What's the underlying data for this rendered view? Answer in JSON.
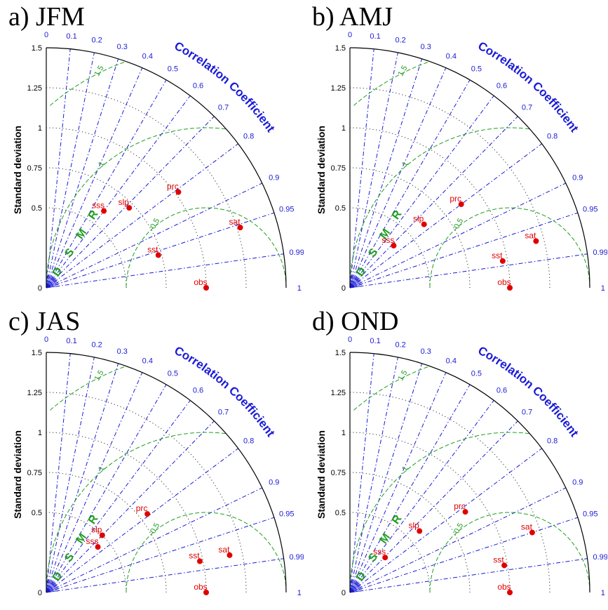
{
  "colors": {
    "axis": "#000000",
    "correlation": "#1a1ad6",
    "rmsd": "#1f9e1f",
    "stddev_grid": "#333333",
    "points": "#e00000"
  },
  "chart_data": [
    {
      "type": "taylor",
      "panel_label": "a) JFM",
      "ylabel": "Standard deviation",
      "corr_label": "Correlation Coefficient",
      "rmsd_label": "R M S D",
      "std_ticks": [
        "0",
        "0.5",
        "0.75",
        "1",
        "1.25",
        "1.5"
      ],
      "std_ticks_num": [
        0,
        0.5,
        0.75,
        1,
        1.25,
        1.5
      ],
      "corr_ticks": [
        "0",
        "0.1",
        "0.2",
        "0.3",
        "0.4",
        "0.5",
        "0.6",
        "0.7",
        "0.8",
        "0.9",
        "0.95",
        "0.99",
        "1"
      ],
      "corr_ticks_num": [
        0,
        0.1,
        0.2,
        0.3,
        0.4,
        0.5,
        0.6,
        0.7,
        0.8,
        0.9,
        0.95,
        0.99,
        1
      ],
      "rmsd_ticks": [
        "0.5",
        "1",
        "1.5"
      ],
      "rmsd_ticks_num": [
        0.5,
        1,
        1.5
      ],
      "std_max": 1.5,
      "ref_std": 1,
      "points": [
        {
          "label": "obs",
          "corr": 1.0,
          "std": 1.0
        },
        {
          "label": "sst",
          "corr": 0.96,
          "std": 0.73
        },
        {
          "label": "sat",
          "corr": 0.955,
          "std": 1.27
        },
        {
          "label": "prc",
          "corr": 0.81,
          "std": 1.02
        },
        {
          "label": "slp",
          "corr": 0.72,
          "std": 0.72
        },
        {
          "label": "sss",
          "corr": 0.6,
          "std": 0.6
        }
      ]
    },
    {
      "type": "taylor",
      "panel_label": "b) AMJ",
      "ylabel": "Standard deviation",
      "corr_label": "Correlation Coefficient",
      "rmsd_label": "R M S D",
      "std_ticks": [
        "0",
        "0.5",
        "0.75",
        "1",
        "1.25",
        "1.5"
      ],
      "std_ticks_num": [
        0,
        0.5,
        0.75,
        1,
        1.25,
        1.5
      ],
      "corr_ticks": [
        "0",
        "0.1",
        "0.2",
        "0.3",
        "0.4",
        "0.5",
        "0.6",
        "0.7",
        "0.8",
        "0.9",
        "0.95",
        "0.99",
        "1"
      ],
      "corr_ticks_num": [
        0,
        0.1,
        0.2,
        0.3,
        0.4,
        0.5,
        0.6,
        0.7,
        0.8,
        0.9,
        0.95,
        0.99,
        1
      ],
      "rmsd_ticks": [
        "0.5",
        "1",
        "1.5"
      ],
      "rmsd_ticks_num": [
        0.5,
        1,
        1.5
      ],
      "std_max": 1.5,
      "ref_std": 1,
      "points": [
        {
          "label": "obs",
          "corr": 1.0,
          "std": 1.0
        },
        {
          "label": "sst",
          "corr": 0.985,
          "std": 0.97
        },
        {
          "label": "sat",
          "corr": 0.97,
          "std": 1.2
        },
        {
          "label": "prc",
          "corr": 0.8,
          "std": 0.87
        },
        {
          "label": "slp",
          "corr": 0.76,
          "std": 0.61
        },
        {
          "label": "sss",
          "corr": 0.72,
          "std": 0.38
        }
      ]
    },
    {
      "type": "taylor",
      "panel_label": "c) JAS",
      "ylabel": "Standard deviation",
      "corr_label": "Correlation Coefficient",
      "rmsd_label": "R M S D",
      "std_ticks": [
        "0",
        "0.5",
        "0.75",
        "1",
        "1.25",
        "1.5"
      ],
      "std_ticks_num": [
        0,
        0.5,
        0.75,
        1,
        1.25,
        1.5
      ],
      "corr_ticks": [
        "0",
        "0.1",
        "0.2",
        "0.3",
        "0.4",
        "0.5",
        "0.6",
        "0.7",
        "0.8",
        "0.9",
        "0.95",
        "0.99",
        "1"
      ],
      "corr_ticks_num": [
        0,
        0.1,
        0.2,
        0.3,
        0.4,
        0.5,
        0.6,
        0.7,
        0.8,
        0.9,
        0.95,
        0.99,
        1
      ],
      "rmsd_ticks": [
        "0.5",
        "1",
        "1.5"
      ],
      "rmsd_ticks_num": [
        0.5,
        1,
        1.5
      ],
      "std_max": 1.5,
      "ref_std": 1,
      "points": [
        {
          "label": "obs",
          "corr": 1.0,
          "std": 1.0
        },
        {
          "label": "sst",
          "corr": 0.98,
          "std": 0.98
        },
        {
          "label": "sat",
          "corr": 0.98,
          "std": 1.17
        },
        {
          "label": "prc",
          "corr": 0.79,
          "std": 0.8
        },
        {
          "label": "slp",
          "corr": 0.7,
          "std": 0.5
        },
        {
          "label": "sss",
          "corr": 0.75,
          "std": 0.43
        }
      ]
    },
    {
      "type": "taylor",
      "panel_label": "d) OND",
      "ylabel": "Standard deviation",
      "corr_label": "Correlation Coefficient",
      "rmsd_label": "R M S D",
      "std_ticks": [
        "0",
        "0.5",
        "0.75",
        "1",
        "1.25",
        "1.5"
      ],
      "std_ticks_num": [
        0,
        0.5,
        0.75,
        1,
        1.25,
        1.5
      ],
      "corr_ticks": [
        "0",
        "0.1",
        "0.2",
        "0.3",
        "0.4",
        "0.5",
        "0.6",
        "0.7",
        "0.8",
        "0.9",
        "0.95",
        "0.99",
        "1"
      ],
      "corr_ticks_num": [
        0,
        0.1,
        0.2,
        0.3,
        0.4,
        0.5,
        0.6,
        0.7,
        0.8,
        0.9,
        0.95,
        0.99,
        1
      ],
      "rmsd_ticks": [
        "0.5",
        "1",
        "1.5"
      ],
      "rmsd_ticks_num": [
        0.5,
        1,
        1.5
      ],
      "std_max": 1.5,
      "ref_std": 1,
      "points": [
        {
          "label": "obs",
          "corr": 1.0,
          "std": 1.0
        },
        {
          "label": "sst",
          "corr": 0.985,
          "std": 0.98
        },
        {
          "label": "sat",
          "corr": 0.95,
          "std": 1.2
        },
        {
          "label": "prc",
          "corr": 0.82,
          "std": 0.88
        },
        {
          "label": "slp",
          "corr": 0.75,
          "std": 0.58
        },
        {
          "label": "sss",
          "corr": 0.71,
          "std": 0.31
        }
      ]
    }
  ]
}
